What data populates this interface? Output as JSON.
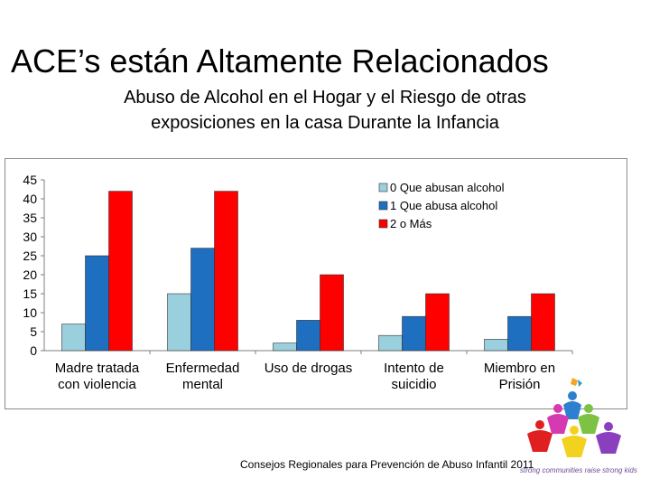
{
  "slide": {
    "title": "ACE’s están Altamente Relacionados",
    "subtitle_line1": "Abuso de Alcohol en el Hogar y el Riesgo de otras",
    "subtitle_line2": "exposiciones en la casa Durante la Infancia",
    "footer": "Consejos Regionales para Prevención de Abuso Infantil 2011",
    "logo_caption": "strong communities raise strong kids"
  },
  "colors": {
    "series": [
      "#9ad0de",
      "#1f6fc0",
      "#ff0000"
    ],
    "bar_stroke": "#333333"
  },
  "chart_data": {
    "type": "bar",
    "title": "",
    "xlabel": "",
    "ylabel": "",
    "ylim": [
      0,
      45
    ],
    "yticks": [
      "0",
      "5",
      "10",
      "15",
      "20",
      "25",
      "30",
      "35",
      "40",
      "45"
    ],
    "categories": [
      [
        "Madre tratada",
        "con violencia"
      ],
      [
        "Enfermedad",
        "mental"
      ],
      [
        "Uso de drogas"
      ],
      [
        "Intento de",
        "suicidio"
      ],
      [
        "Miembro en",
        "Prisión"
      ]
    ],
    "series": [
      {
        "name": "0 Que abusan alcohol",
        "values": [
          7,
          15,
          2,
          4,
          3
        ]
      },
      {
        "name": "1 Que abusa alcohol",
        "values": [
          25,
          27,
          8,
          9,
          9
        ]
      },
      {
        "name": "2 o Más",
        "values": [
          42,
          42,
          20,
          15,
          15
        ]
      }
    ],
    "legend_position": "top-right",
    "grid": false
  }
}
